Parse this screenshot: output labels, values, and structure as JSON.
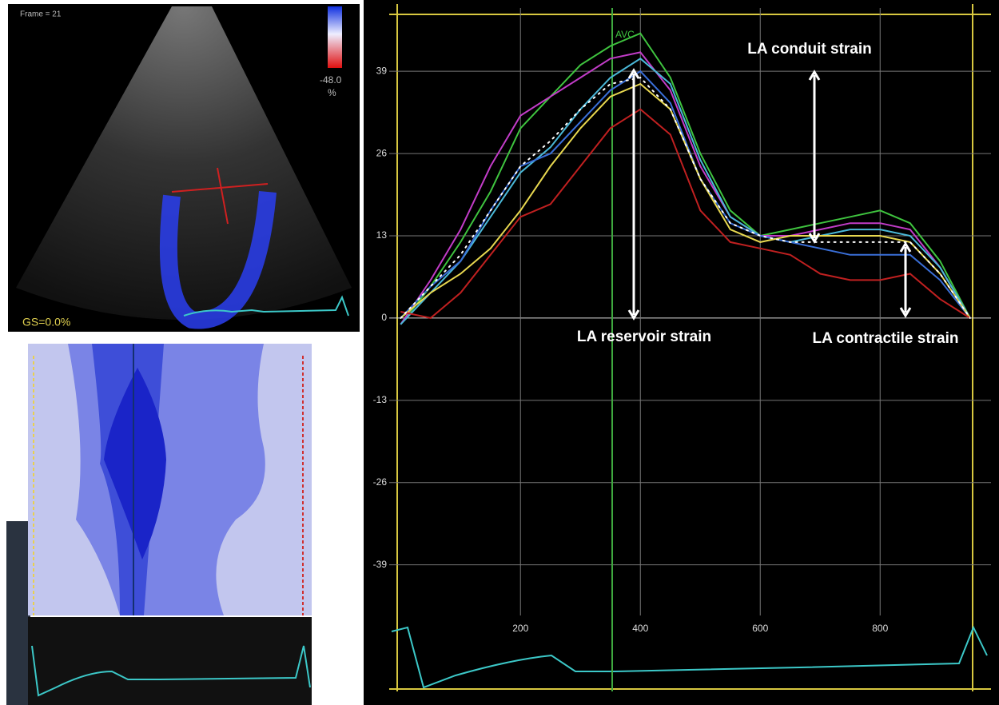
{
  "ui": {
    "frame_label": "Frame = 21",
    "scale_value": "-48.0",
    "scale_unit": "%",
    "global_strain": "GS=0.0%"
  },
  "chart_data": {
    "type": "line",
    "x": [
      0,
      50,
      100,
      150,
      200,
      250,
      300,
      350,
      400,
      450,
      500,
      550,
      600,
      650,
      700,
      750,
      800,
      850,
      900,
      950
    ],
    "series": [
      {
        "color": "#3fc43f",
        "values": [
          -1,
          5,
          12,
          20,
          30,
          35,
          40,
          43,
          45,
          38,
          26,
          17,
          13,
          14,
          15,
          16,
          17,
          15,
          9,
          0
        ]
      },
      {
        "color": "#c23cc8",
        "values": [
          -1,
          6,
          14,
          24,
          32,
          35,
          38,
          41,
          42,
          36,
          24,
          16,
          13,
          13,
          14,
          15,
          15,
          14,
          8,
          0
        ]
      },
      {
        "color": "#4ab8d8",
        "values": [
          -1,
          4,
          9,
          16,
          23,
          27,
          33,
          38,
          41,
          37,
          25,
          16,
          13,
          12,
          13,
          14,
          14,
          13,
          8,
          0
        ]
      },
      {
        "color": "#3a6fd8",
        "values": [
          0,
          5,
          9,
          17,
          24,
          26,
          31,
          36,
          39,
          34,
          22,
          15,
          13,
          12,
          11,
          10,
          10,
          10,
          6,
          0
        ]
      },
      {
        "color": "#e8d850",
        "values": [
          0,
          4,
          7,
          11,
          17,
          24,
          30,
          35,
          37,
          33,
          22,
          14,
          12,
          13,
          13,
          13,
          13,
          12,
          7,
          0
        ]
      },
      {
        "color": "#c02020",
        "values": [
          1,
          0,
          4,
          10,
          16,
          18,
          24,
          30,
          33,
          29,
          17,
          12,
          11,
          10,
          7,
          6,
          6,
          7,
          3,
          0
        ]
      },
      {
        "color": "#ffffff",
        "dotted": true,
        "values": [
          0,
          5,
          10,
          17,
          24,
          28,
          33,
          37,
          38,
          33,
          22,
          15,
          13,
          12,
          12,
          12,
          12,
          12,
          7,
          0
        ]
      }
    ],
    "xlim": [
      -19,
      985
    ],
    "ylim": [
      -47,
      49
    ],
    "xticks": [
      200,
      400,
      600,
      800
    ],
    "yticks": [
      39,
      26,
      13,
      0,
      -13,
      -26,
      -39
    ],
    "grid": true,
    "markers": [
      {
        "label": "AVC",
        "x": 353
      }
    ],
    "annotations": [
      "LA conduit strain",
      "LA reservoir strain",
      "LA contractile strain"
    ]
  }
}
